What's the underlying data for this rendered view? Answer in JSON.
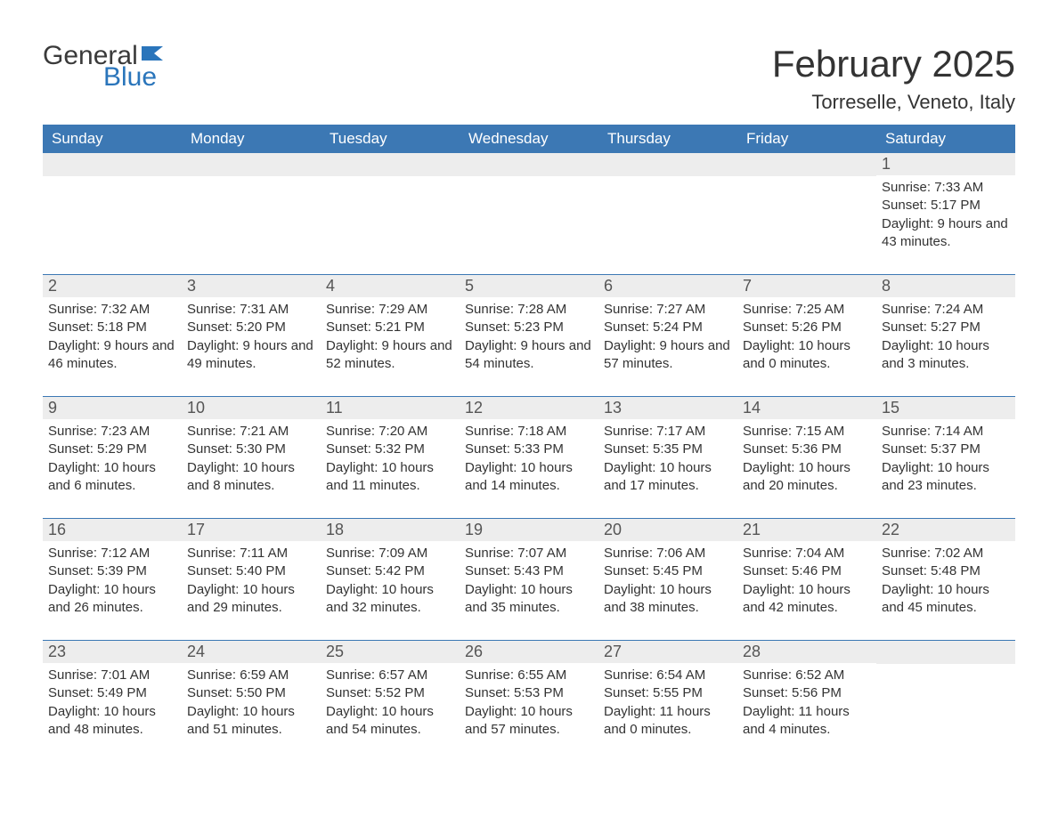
{
  "logo": {
    "text_general": "General",
    "text_blue": "Blue",
    "flag_color": "#2a75bb",
    "general_color": "#3a3a3a"
  },
  "title": "February 2025",
  "subtitle": "Torreselle, Veneto, Italy",
  "colors": {
    "header_bg": "#3c78b4",
    "header_text": "#ffffff",
    "daynum_bg": "#ededed",
    "daynum_text": "#555555",
    "body_text": "#333333",
    "week_border": "#3c78b4",
    "page_bg": "#ffffff"
  },
  "typography": {
    "title_fontsize": 42,
    "subtitle_fontsize": 22,
    "dayheader_fontsize": 17,
    "daynum_fontsize": 18,
    "body_fontsize": 15,
    "font_family": "Arial"
  },
  "day_headers": [
    "Sunday",
    "Monday",
    "Tuesday",
    "Wednesday",
    "Thursday",
    "Friday",
    "Saturday"
  ],
  "weeks": [
    [
      {
        "day": "",
        "sunrise": "",
        "sunset": "",
        "daylight": ""
      },
      {
        "day": "",
        "sunrise": "",
        "sunset": "",
        "daylight": ""
      },
      {
        "day": "",
        "sunrise": "",
        "sunset": "",
        "daylight": ""
      },
      {
        "day": "",
        "sunrise": "",
        "sunset": "",
        "daylight": ""
      },
      {
        "day": "",
        "sunrise": "",
        "sunset": "",
        "daylight": ""
      },
      {
        "day": "",
        "sunrise": "",
        "sunset": "",
        "daylight": ""
      },
      {
        "day": "1",
        "sunrise": "Sunrise: 7:33 AM",
        "sunset": "Sunset: 5:17 PM",
        "daylight": "Daylight: 9 hours and 43 minutes."
      }
    ],
    [
      {
        "day": "2",
        "sunrise": "Sunrise: 7:32 AM",
        "sunset": "Sunset: 5:18 PM",
        "daylight": "Daylight: 9 hours and 46 minutes."
      },
      {
        "day": "3",
        "sunrise": "Sunrise: 7:31 AM",
        "sunset": "Sunset: 5:20 PM",
        "daylight": "Daylight: 9 hours and 49 minutes."
      },
      {
        "day": "4",
        "sunrise": "Sunrise: 7:29 AM",
        "sunset": "Sunset: 5:21 PM",
        "daylight": "Daylight: 9 hours and 52 minutes."
      },
      {
        "day": "5",
        "sunrise": "Sunrise: 7:28 AM",
        "sunset": "Sunset: 5:23 PM",
        "daylight": "Daylight: 9 hours and 54 minutes."
      },
      {
        "day": "6",
        "sunrise": "Sunrise: 7:27 AM",
        "sunset": "Sunset: 5:24 PM",
        "daylight": "Daylight: 9 hours and 57 minutes."
      },
      {
        "day": "7",
        "sunrise": "Sunrise: 7:25 AM",
        "sunset": "Sunset: 5:26 PM",
        "daylight": "Daylight: 10 hours and 0 minutes."
      },
      {
        "day": "8",
        "sunrise": "Sunrise: 7:24 AM",
        "sunset": "Sunset: 5:27 PM",
        "daylight": "Daylight: 10 hours and 3 minutes."
      }
    ],
    [
      {
        "day": "9",
        "sunrise": "Sunrise: 7:23 AM",
        "sunset": "Sunset: 5:29 PM",
        "daylight": "Daylight: 10 hours and 6 minutes."
      },
      {
        "day": "10",
        "sunrise": "Sunrise: 7:21 AM",
        "sunset": "Sunset: 5:30 PM",
        "daylight": "Daylight: 10 hours and 8 minutes."
      },
      {
        "day": "11",
        "sunrise": "Sunrise: 7:20 AM",
        "sunset": "Sunset: 5:32 PM",
        "daylight": "Daylight: 10 hours and 11 minutes."
      },
      {
        "day": "12",
        "sunrise": "Sunrise: 7:18 AM",
        "sunset": "Sunset: 5:33 PM",
        "daylight": "Daylight: 10 hours and 14 minutes."
      },
      {
        "day": "13",
        "sunrise": "Sunrise: 7:17 AM",
        "sunset": "Sunset: 5:35 PM",
        "daylight": "Daylight: 10 hours and 17 minutes."
      },
      {
        "day": "14",
        "sunrise": "Sunrise: 7:15 AM",
        "sunset": "Sunset: 5:36 PM",
        "daylight": "Daylight: 10 hours and 20 minutes."
      },
      {
        "day": "15",
        "sunrise": "Sunrise: 7:14 AM",
        "sunset": "Sunset: 5:37 PM",
        "daylight": "Daylight: 10 hours and 23 minutes."
      }
    ],
    [
      {
        "day": "16",
        "sunrise": "Sunrise: 7:12 AM",
        "sunset": "Sunset: 5:39 PM",
        "daylight": "Daylight: 10 hours and 26 minutes."
      },
      {
        "day": "17",
        "sunrise": "Sunrise: 7:11 AM",
        "sunset": "Sunset: 5:40 PM",
        "daylight": "Daylight: 10 hours and 29 minutes."
      },
      {
        "day": "18",
        "sunrise": "Sunrise: 7:09 AM",
        "sunset": "Sunset: 5:42 PM",
        "daylight": "Daylight: 10 hours and 32 minutes."
      },
      {
        "day": "19",
        "sunrise": "Sunrise: 7:07 AM",
        "sunset": "Sunset: 5:43 PM",
        "daylight": "Daylight: 10 hours and 35 minutes."
      },
      {
        "day": "20",
        "sunrise": "Sunrise: 7:06 AM",
        "sunset": "Sunset: 5:45 PM",
        "daylight": "Daylight: 10 hours and 38 minutes."
      },
      {
        "day": "21",
        "sunrise": "Sunrise: 7:04 AM",
        "sunset": "Sunset: 5:46 PM",
        "daylight": "Daylight: 10 hours and 42 minutes."
      },
      {
        "day": "22",
        "sunrise": "Sunrise: 7:02 AM",
        "sunset": "Sunset: 5:48 PM",
        "daylight": "Daylight: 10 hours and 45 minutes."
      }
    ],
    [
      {
        "day": "23",
        "sunrise": "Sunrise: 7:01 AM",
        "sunset": "Sunset: 5:49 PM",
        "daylight": "Daylight: 10 hours and 48 minutes."
      },
      {
        "day": "24",
        "sunrise": "Sunrise: 6:59 AM",
        "sunset": "Sunset: 5:50 PM",
        "daylight": "Daylight: 10 hours and 51 minutes."
      },
      {
        "day": "25",
        "sunrise": "Sunrise: 6:57 AM",
        "sunset": "Sunset: 5:52 PM",
        "daylight": "Daylight: 10 hours and 54 minutes."
      },
      {
        "day": "26",
        "sunrise": "Sunrise: 6:55 AM",
        "sunset": "Sunset: 5:53 PM",
        "daylight": "Daylight: 10 hours and 57 minutes."
      },
      {
        "day": "27",
        "sunrise": "Sunrise: 6:54 AM",
        "sunset": "Sunset: 5:55 PM",
        "daylight": "Daylight: 11 hours and 0 minutes."
      },
      {
        "day": "28",
        "sunrise": "Sunrise: 6:52 AM",
        "sunset": "Sunset: 5:56 PM",
        "daylight": "Daylight: 11 hours and 4 minutes."
      },
      {
        "day": "",
        "sunrise": "",
        "sunset": "",
        "daylight": ""
      }
    ]
  ]
}
